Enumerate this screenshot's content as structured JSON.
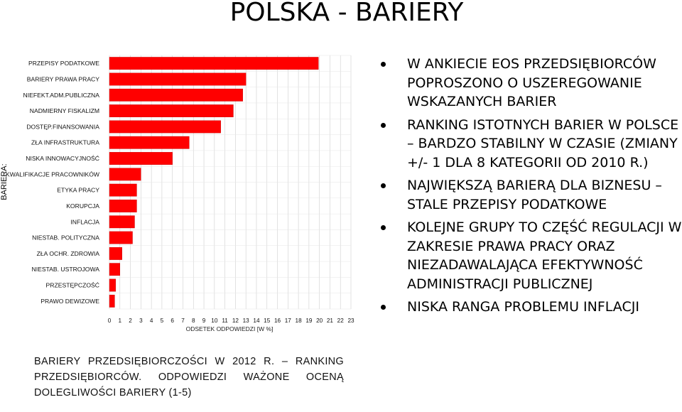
{
  "slide": {
    "title": "POLSKA - BARIERY"
  },
  "chart_data": {
    "type": "bar",
    "orientation": "horizontal",
    "y_axis_title": "BARIERA:",
    "xlabel": "ODSETEK ODPOWIEDZI [W %]",
    "xlim": [
      0,
      23
    ],
    "x_ticks": [
      "0",
      "1",
      "2",
      "3",
      "4",
      "5",
      "6",
      "7",
      "8",
      "9",
      "10",
      "11",
      "12",
      "13",
      "14",
      "15",
      "16",
      "17",
      "18",
      "19",
      "20",
      "21",
      "22",
      "23"
    ],
    "grid": true,
    "bar_color": "#ff0000",
    "categories": [
      "PRZEPISY PODATKOWE",
      "BARIERY PRAWA PRACY",
      "NIEFEKT.ADM.PUBLICZNA",
      "NADMIERNY FISKALIZM",
      "DOSTĘP.FINANSOWANIA",
      "ZŁA INFRASTRUKTURA",
      "NISKA INNOWACYJNOŚĆ",
      "KWALIFIKACJE PRACOWNIKÓW",
      "ETYKA PRACY",
      "KORUPCJA",
      "INFLACJA",
      "NIESTAB. POLITYCZNA",
      "ZŁA OCHR. ZDROWIA",
      "NIESTAB. USTROJOWA",
      "PRZESTĘPCZOŚĆ",
      "PRAWO DEWIZOWE"
    ],
    "values": [
      19.9,
      13.0,
      12.7,
      11.8,
      10.6,
      7.6,
      6.0,
      3.0,
      2.6,
      2.6,
      2.4,
      2.2,
      1.2,
      1.0,
      0.6,
      0.5
    ]
  },
  "caption": "BARIERY PRZEDSIĘBIORCZOŚCI W 2012 R. – RANKING PRZEDSIĘBIORCÓW. ODPOWIEDZI WAŻONE OCENĄ DOLEGLIWOŚCI BARIERY (1-5)",
  "bullets": [
    "W ANKIECIE EOS PRZEDSIĘBIORCÓW POPROSZONO O USZEREGOWANIE WSKAZANYCH BARIER",
    "RANKING ISTOTNYCH BARIER W POLSCE – BARDZO STABILNY W CZASIE (ZMIANY +/- 1 DLA 8 KATEGORII OD 2010 R.)",
    "NAJWIĘKSZĄ BARIERĄ DLA BIZNESU – STALE PRZEPISY PODATKOWE",
    "KOLEJNE GRUPY TO CZĘŚĆ REGULACJI W ZAKRESIE PRAWA PRACY ORAZ NIEZADAWALAJĄCA EFEKTYWNOŚĆ ADMINISTRACJI PUBLICZNEJ",
    "NISKA RANGA PROBLEMU INFLACJI"
  ]
}
